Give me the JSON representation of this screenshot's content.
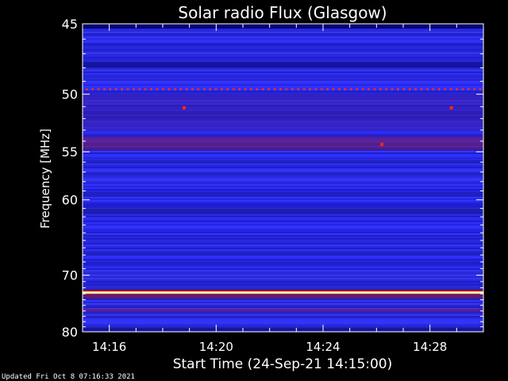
{
  "chart_data": {
    "type": "heatmap",
    "title": "Solar radio Flux (Glasgow)",
    "xlabel": "Start Time (24-Sep-21 14:15:00)",
    "ylabel": "Frequency [MHz]",
    "x_ticks": [
      "14:16",
      "14:20",
      "14:24",
      "14:28"
    ],
    "x_tick_minutes": [
      16,
      20,
      24,
      28
    ],
    "x_range_minutes": [
      15,
      30
    ],
    "y_ticks": [
      45,
      50,
      55,
      60,
      70,
      80
    ],
    "y_range": [
      45,
      80
    ],
    "y_scale": "reciprocal",
    "colormap": [
      "#000000",
      "#1a1ab0",
      "#2b2bff",
      "#6a2aa8",
      "#a01010",
      "#ff2000",
      "#ffe000",
      "#ffffff"
    ],
    "background_level": "blue",
    "bands": [
      {
        "freq": 49.6,
        "level": "red dotted line (periodic interference)"
      },
      {
        "freq": 54.0,
        "level": "dark red / purple band"
      },
      {
        "freq": 72.7,
        "level": "bright yellow-white continuous line"
      },
      {
        "freq": 73.2,
        "level": "red band"
      }
    ],
    "spots": [
      {
        "time_minute": 18.8,
        "freq": 51.1
      },
      {
        "time_minute": 28.8,
        "freq": 51.1
      },
      {
        "time_minute": 26.2,
        "freq": 54.3
      }
    ]
  },
  "footer": {
    "updated": "Updated Fri Oct  8 07:16:33 2021"
  }
}
